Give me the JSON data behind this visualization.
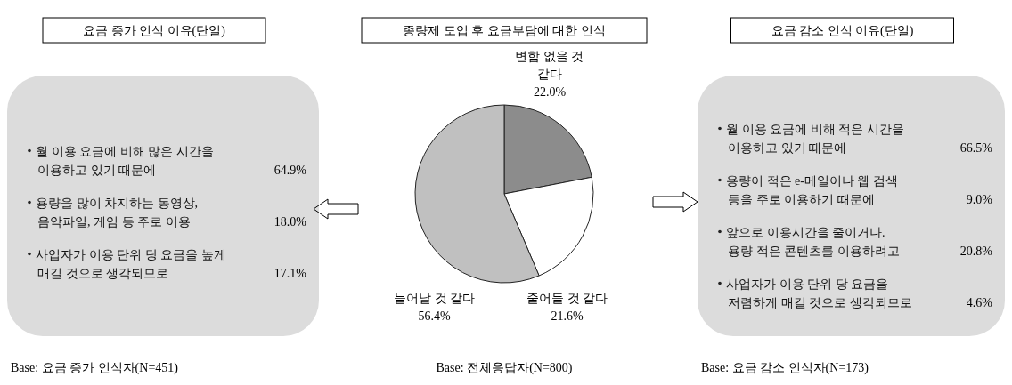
{
  "chart_data": [
    {
      "type": "other",
      "title": "요금 증가 인식 이유(단일)",
      "categories": [
        "월 이용 요금에 비해 많은 시간을\n이용하고 있기 때문에",
        "용량을 많이 차지하는 동영상,\n음악파일, 게임 등 주로 이용",
        "사업자가 이용 단위 당 요금을 높게\n매길 것으로 생각되므로"
      ],
      "value_labels": [
        "64.9%",
        "18.0%",
        "17.1%"
      ],
      "annotations": [
        "Base: 요금 증가 인식자(N=451)"
      ]
    },
    {
      "type": "pie",
      "title": "종량제 도입 후 요금부담에 대한 인식",
      "categories": [
        "변함 없을 것\n같다",
        "줄어들 것 같다",
        "늘어날 것 같다"
      ],
      "values": [
        22.0,
        21.6,
        56.4
      ],
      "value_labels": [
        "22.0%",
        "21.6%",
        "56.4%"
      ],
      "colors": [
        "#8c8c8c",
        "#ffffff",
        "#c0c0c0"
      ],
      "annotations": [
        "Base: 전체응답자(N=800)"
      ]
    },
    {
      "type": "other",
      "title": "요금 감소 인식 이유(단일)",
      "categories": [
        "월 이용 요금에 비해 적은 시간을\n이용하고 있기 때문에",
        "용량이 적은 e-메일이나 웹 검색\n등을 주로 이용하기 때문에",
        "앞으로 이용시간을 줄이거나.\n용량 적은 콘텐츠를 이용하려고",
        "사업자가 이용 단위 당 요금을\n저렴하게 매길 것으로 생각되므로"
      ],
      "value_labels": [
        "66.5%",
        "9.0%",
        "20.8%",
        "4.6%"
      ],
      "annotations": [
        "Base: 요금 감소 인식자(N=173)"
      ]
    }
  ]
}
